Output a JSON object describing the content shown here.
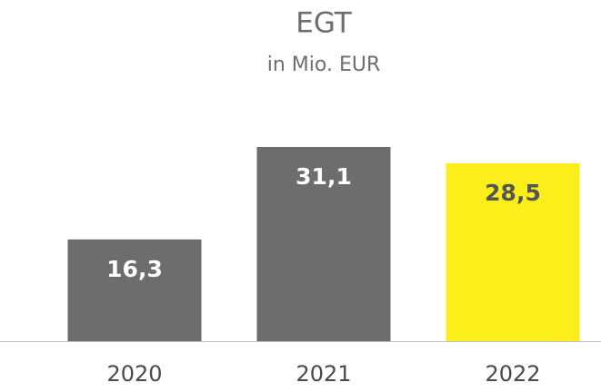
{
  "chart_data": {
    "type": "bar",
    "title": "EGT",
    "subtitle": "in Mio. EUR",
    "categories": [
      "2020",
      "2021",
      "2022"
    ],
    "values": [
      16.3,
      31.1,
      28.5
    ],
    "value_labels": [
      "16,3",
      "31,1",
      "28,5"
    ],
    "colors": [
      "#6d6d6d",
      "#6d6d6d",
      "#fbee1a"
    ]
  }
}
